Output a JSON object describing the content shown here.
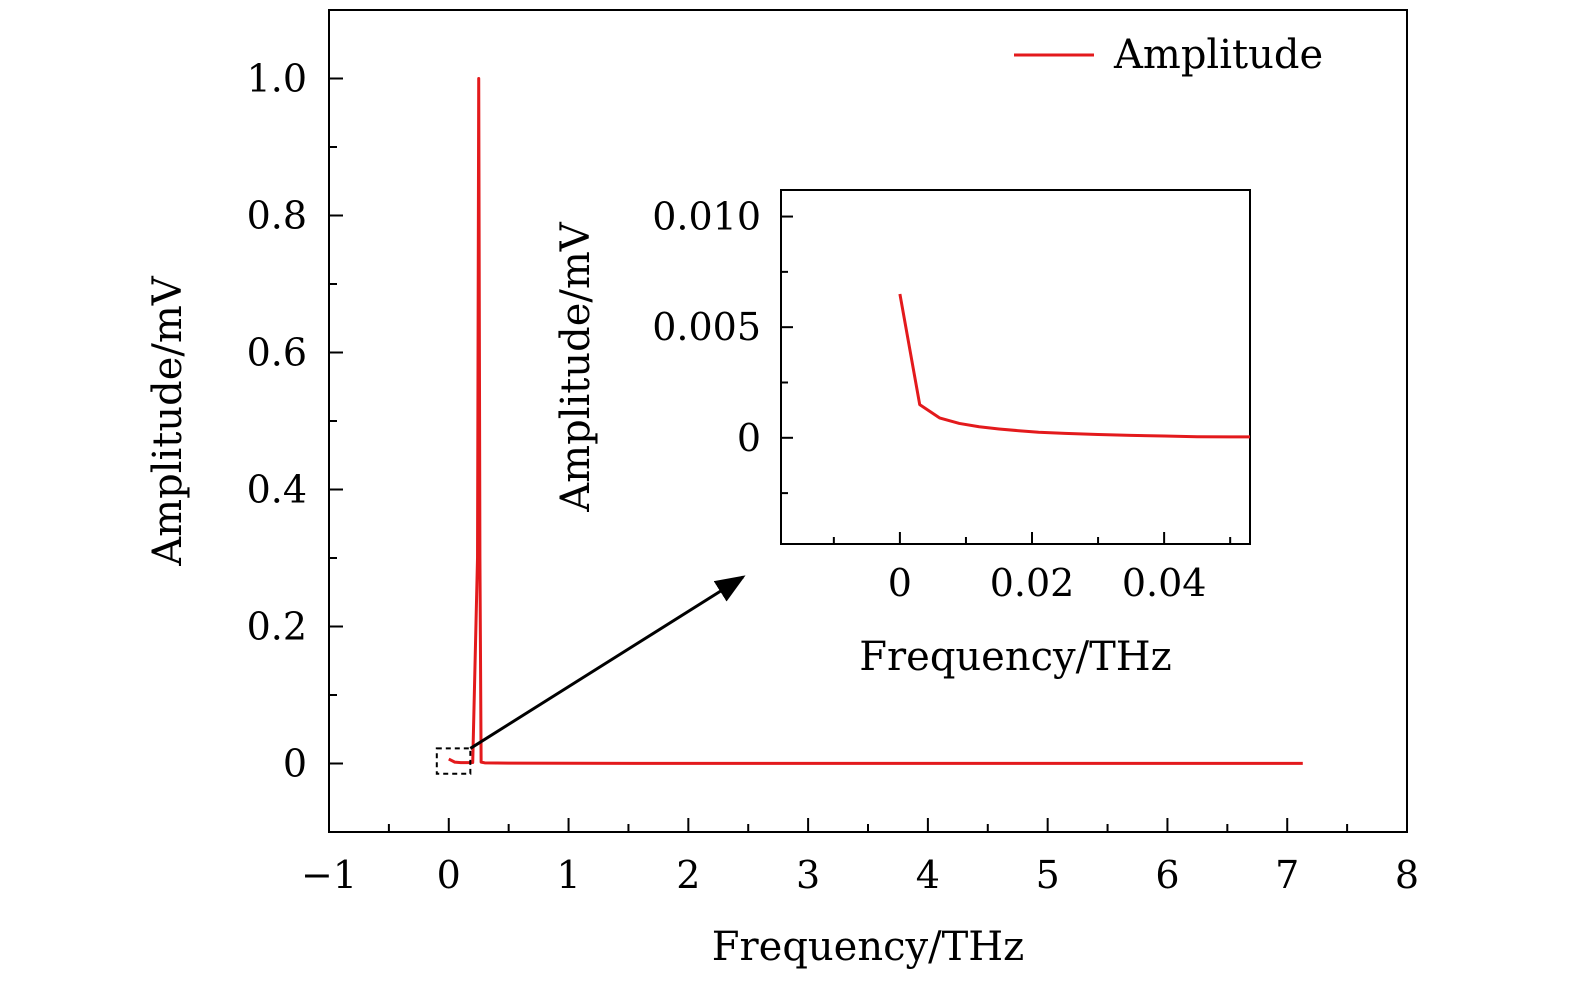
{
  "chart_data": [
    {
      "type": "line",
      "role": "main",
      "xlabel": "Frequency/THz",
      "ylabel": "Amplitude/mV",
      "xlim": [
        -1,
        8
      ],
      "ylim": [
        -0.1,
        1.1
      ],
      "xticks": [
        -1,
        0,
        1,
        2,
        3,
        4,
        5,
        6,
        7,
        8
      ],
      "xtick_labels": [
        "−1",
        "0",
        "1",
        "2",
        "3",
        "4",
        "5",
        "6",
        "7",
        "8"
      ],
      "yticks": [
        0,
        0.2,
        0.4,
        0.6,
        0.8,
        1.0
      ],
      "ytick_labels": [
        "0",
        "0.2",
        "0.4",
        "0.6",
        "0.8",
        "1.0"
      ],
      "legend": {
        "position": "top-right",
        "label": "Amplitude"
      },
      "series": [
        {
          "name": "Amplitude",
          "color": "#e31a1c",
          "x": [
            0,
            0.05,
            0.1,
            0.15,
            0.2,
            0.24,
            0.25,
            0.26,
            0.27,
            0.3,
            0.5,
            1,
            2,
            3,
            4,
            5,
            6,
            7.13
          ],
          "y": [
            0.0065,
            0.002,
            0.0012,
            0.0012,
            0.0015,
            0.3,
            1.0,
            0.3,
            0.002,
            0.001,
            0.0005,
            0.0003,
            0.0002,
            0.0001,
            0.0001,
            0.0001,
            0.0001,
            0.0001
          ]
        }
      ],
      "zoom_box": {
        "x": [
          -0.1,
          0.18
        ],
        "y": [
          -0.015,
          0.022
        ]
      }
    },
    {
      "type": "line",
      "role": "inset",
      "xlabel": "Frequency/THz",
      "ylabel": "Amplitude/mV",
      "xlim": [
        -0.018,
        0.053
      ],
      "ylim": [
        -0.0048,
        0.0112
      ],
      "xticks": [
        0,
        0.02,
        0.04
      ],
      "xtick_labels": [
        "0",
        "0.02",
        "0.04"
      ],
      "yticks": [
        0,
        0.005,
        0.01
      ],
      "ytick_labels": [
        "0",
        "0.005",
        "0.010"
      ],
      "series": [
        {
          "name": "Amplitude",
          "color": "#e31a1c",
          "x": [
            0,
            0.003,
            0.006,
            0.009,
            0.012,
            0.015,
            0.018,
            0.021,
            0.025,
            0.03,
            0.035,
            0.04,
            0.045,
            0.05,
            0.053
          ],
          "y": [
            0.0065,
            0.0015,
            0.0009,
            0.00065,
            0.0005,
            0.0004,
            0.00032,
            0.00025,
            0.0002,
            0.00015,
            0.00011,
            8e-05,
            5e-05,
            4e-05,
            4e-05
          ]
        }
      ]
    }
  ]
}
